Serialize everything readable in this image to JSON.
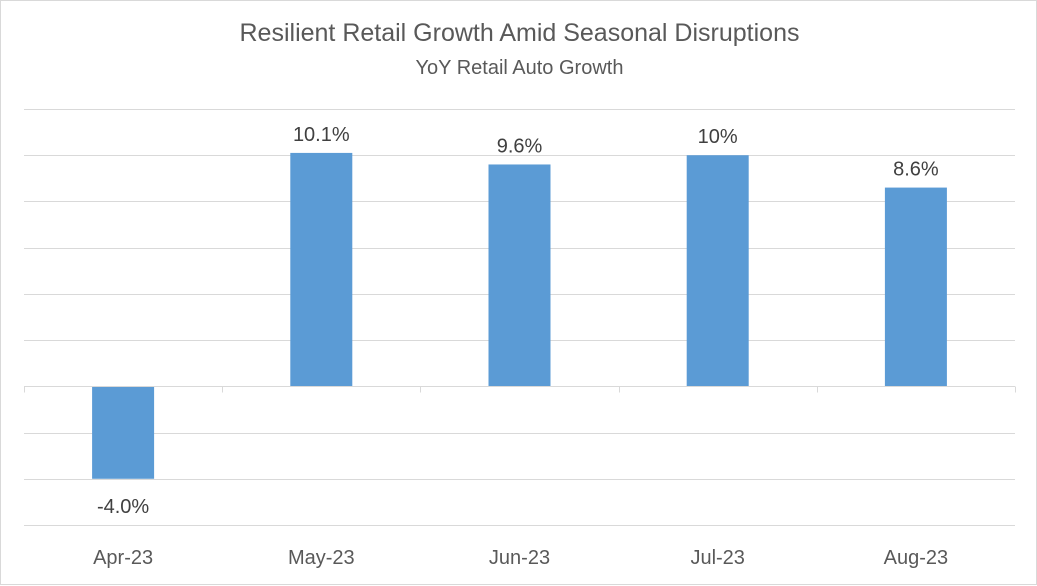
{
  "chart_data": {
    "type": "bar",
    "title": "Resilient Retail Growth Amid Seasonal Disruptions",
    "subtitle": "YoY Retail Auto Growth",
    "xlabel": "",
    "ylabel": "",
    "categories": [
      "Apr-23",
      "May-23",
      "Jun-23",
      "Jul-23",
      "Aug-23"
    ],
    "values": [
      -4.0,
      10.1,
      9.6,
      10.0,
      8.6
    ],
    "data_labels": [
      "-4.0%",
      "10.1%",
      "9.6%",
      "10%",
      "8.6%"
    ],
    "ylim": [
      -6,
      12
    ],
    "gridlines": true,
    "y_tick_labels_shown": false,
    "legend": "none",
    "bar_color": "#5b9bd5",
    "grid_color": "#d9d9d9",
    "text_color": "#595959"
  }
}
